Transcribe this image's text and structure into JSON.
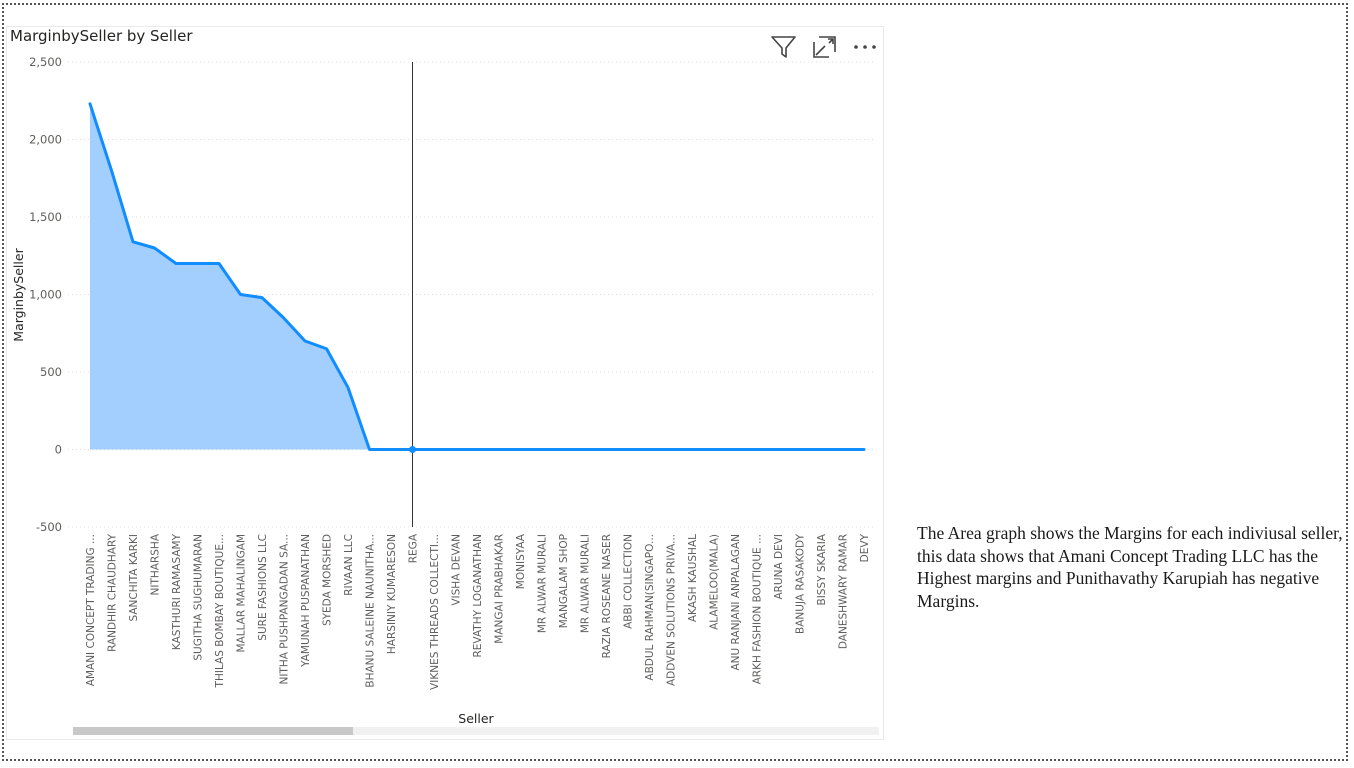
{
  "visual": {
    "title": "MarginbySeller by Seller",
    "icons": [
      "filter-icon",
      "focus-mode-icon",
      "more-options-icon"
    ]
  },
  "note": {
    "text": "The Area graph shows the Margins for each indiviusal seller, this data shows that Amani Concept Trading LLC has the Highest margins and Punithavathy Karupiah has negative Margins."
  },
  "colors": {
    "line": "#118DFF",
    "area": "#A3CFFF",
    "gridline": "#dddddd",
    "axis_text": "#605e5c"
  },
  "chart_data": {
    "type": "area",
    "title": "MarginbySeller by Seller",
    "xlabel": "Seller",
    "ylabel": "MarginbySeller",
    "ylim": [
      -500,
      2500
    ],
    "yticks": [
      {
        "value": 2500,
        "label": "2,500"
      },
      {
        "value": 2000,
        "label": "2,000"
      },
      {
        "value": 1500,
        "label": "1,500"
      },
      {
        "value": 1000,
        "label": "1,000"
      },
      {
        "value": 500,
        "label": "500"
      },
      {
        "value": 0,
        "label": "0"
      },
      {
        "value": -500,
        "label": "-500"
      }
    ],
    "grid": true,
    "categories": [
      "AMANI CONCEPT TRADING ...",
      "RANDHIR CHAUDHARY",
      "SANCHITA KARKI",
      "NITHARSHA",
      "KASTHURI RAMASAMY",
      "SUGITHA SUGHUMARAN",
      "THILAS BOMBAY BOUTIQUE...",
      "MALLAR MAHALINGAM",
      "SURE FASHIONS LLC",
      "NITHA PUSHPANGADAN SA...",
      "YAMUNAH PUSPANATHAN",
      "SYEDA MORSHED",
      "RIVAAN LLC",
      "BHANU SALEINE NAUNITHA...",
      "HARSINIY KUMARESON",
      "REGA",
      "VIKNES THREADS COLLECTI...",
      "VISHA DEVAN",
      "REVATHY LOGANATHAN",
      "MANGAI PRABHAKAR",
      "MONISYAA",
      "MR ALWAR MURALI",
      "MANGALAM SHOP",
      "MR ALWAR MURALI",
      "RAZIA ROSEANE NASER",
      "ABBI COLLECTION",
      "ABDUL RAHMAN(SINGAPO...",
      "ADDVEN SOLUTIONS PRIVA...",
      "AKASH KAUSHAL",
      "ALAMELOO(MALA)",
      "ANU RANJANI ANPALAGAN",
      "ARKH FASHION BOUTIQUE ...",
      "ARUNA DEVI",
      "BANUJA RASAKODY",
      "BISSY SKARIA",
      "DANESHWARY RAMAR",
      "DEVY"
    ],
    "series": [
      {
        "values": [
          2230,
          1800,
          1340,
          1300,
          1200,
          1200,
          1200,
          1000,
          980,
          850,
          700,
          650,
          400,
          0,
          0,
          0,
          0,
          0,
          0,
          0,
          0,
          0,
          0,
          0,
          0,
          0,
          0,
          0,
          0,
          0,
          0,
          0,
          0,
          0,
          0,
          0,
          0
        ]
      }
    ],
    "highlight_index": 15
  }
}
